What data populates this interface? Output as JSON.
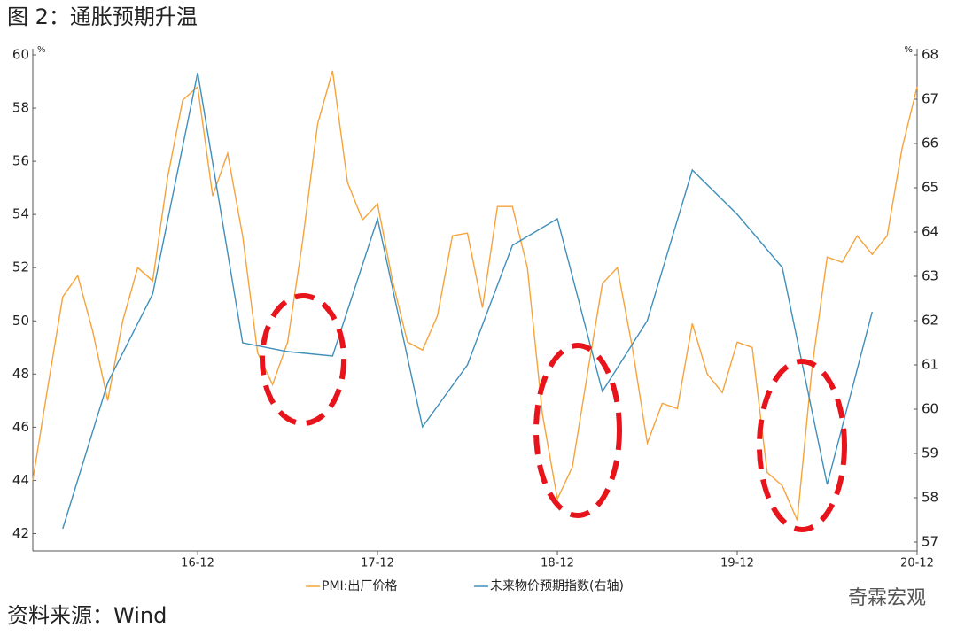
{
  "chart_data": {
    "type": "line",
    "title": "图 2：通胀预期升温",
    "source": "资料来源：Wind",
    "watermark": "奇霖宏观",
    "y_unit": "%",
    "y2_unit": "%",
    "x": [
      "16-01",
      "16-02",
      "16-03",
      "16-04",
      "16-05",
      "16-06",
      "16-07",
      "16-08",
      "16-09",
      "16-10",
      "16-11",
      "16-12",
      "17-01",
      "17-02",
      "17-03",
      "17-04",
      "17-05",
      "17-06",
      "17-07",
      "17-08",
      "17-09",
      "17-10",
      "17-11",
      "17-12",
      "18-01",
      "18-02",
      "18-03",
      "18-04",
      "18-05",
      "18-06",
      "18-07",
      "18-08",
      "18-09",
      "18-10",
      "18-11",
      "18-12",
      "19-01",
      "19-02",
      "19-03",
      "19-04",
      "19-05",
      "19-06",
      "19-07",
      "19-08",
      "19-09",
      "19-10",
      "19-11",
      "19-12",
      "20-01",
      "20-02",
      "20-03",
      "20-04",
      "20-05",
      "20-06",
      "20-07",
      "20-08",
      "20-09",
      "20-10",
      "20-11",
      "20-12"
    ],
    "xticks": [
      "16-12",
      "17-12",
      "18-12",
      "19-12",
      "20-12"
    ],
    "ylim": [
      41.35,
      60
    ],
    "yticks": [
      42,
      44,
      46,
      48,
      50,
      52,
      54,
      56,
      58,
      60
    ],
    "y2lim": [
      56.8,
      68
    ],
    "y2ticks": [
      57,
      58,
      59,
      60,
      61,
      62,
      63,
      64,
      65,
      66,
      67,
      68
    ],
    "series": [
      {
        "name": "PMI:出厂价格",
        "color": "#f5a33a",
        "values": [
          44.0,
          47.5,
          50.9,
          51.7,
          49.6,
          47.0,
          50.0,
          52.0,
          51.5,
          55.4,
          58.3,
          58.8,
          54.7,
          56.3,
          53.2,
          48.8,
          47.6,
          49.2,
          53.0,
          57.4,
          59.4,
          55.2,
          53.8,
          54.4,
          51.5,
          49.2,
          48.9,
          50.2,
          53.2,
          53.3,
          50.5,
          54.3,
          54.3,
          52.0,
          46.5,
          43.3,
          44.5,
          48.0,
          51.4,
          52.0,
          49.0,
          45.4,
          46.9,
          46.7,
          49.9,
          48.0,
          47.3,
          49.2,
          49.0,
          44.3,
          43.8,
          42.5,
          48.3,
          52.4,
          52.2,
          53.2,
          52.5,
          53.2,
          56.5,
          58.8
        ]
      },
      {
        "name": "未来物价预期指数(右轴)",
        "color": "#3f8fba",
        "axis": "y2",
        "x": [
          "16-03",
          "16-06",
          "16-09",
          "16-12",
          "17-03",
          "17-06",
          "17-09",
          "17-12",
          "18-03",
          "18-06",
          "18-09",
          "18-12",
          "19-03",
          "19-06",
          "19-09",
          "19-12",
          "20-03",
          "20-06",
          "20-09"
        ],
        "values": [
          57.3,
          60.6,
          62.6,
          67.6,
          61.5,
          61.3,
          61.2,
          64.3,
          59.6,
          61.0,
          63.7,
          64.3,
          60.4,
          62.0,
          65.4,
          64.4,
          63.2,
          58.3,
          62.2
        ]
      }
    ]
  }
}
